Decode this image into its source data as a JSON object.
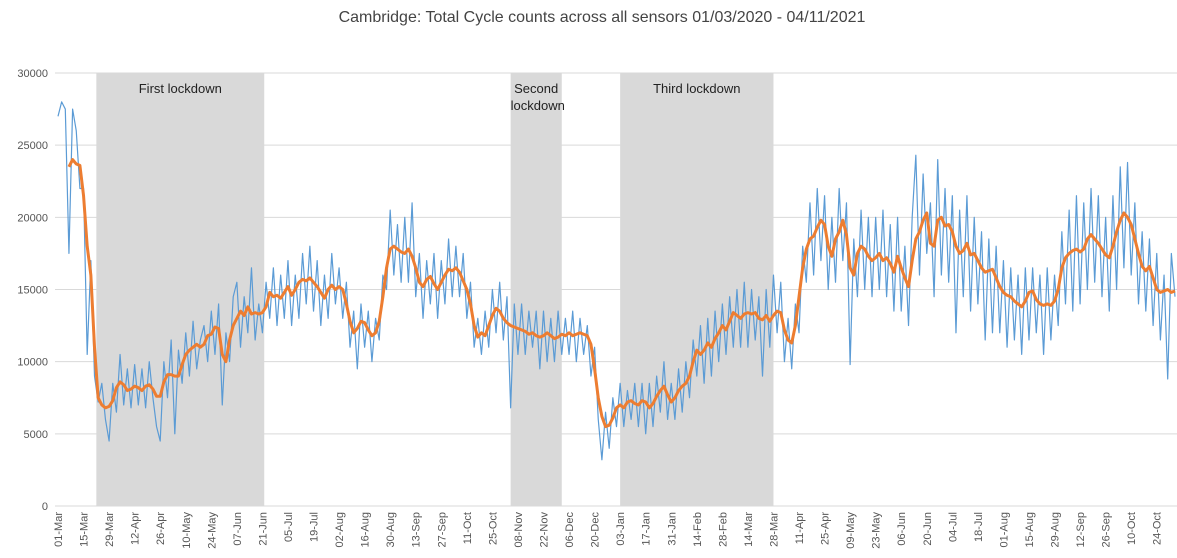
{
  "chart_data": {
    "type": "line",
    "title": "Cambridge: Total Cycle counts across all sensors 01/03/2020 - 04/11/2021",
    "categories": [
      "01-Mar",
      null,
      null,
      null,
      null,
      null,
      null,
      "15-Mar",
      null,
      null,
      null,
      null,
      null,
      null,
      "29-Mar",
      null,
      null,
      null,
      null,
      null,
      null,
      "12-Apr",
      null,
      null,
      null,
      null,
      null,
      null,
      "26-Apr",
      null,
      null,
      null,
      null,
      null,
      null,
      "10-May",
      null,
      null,
      null,
      null,
      null,
      null,
      "24-May",
      null,
      null,
      null,
      null,
      null,
      null,
      "07-Jun",
      null,
      null,
      null,
      null,
      null,
      null,
      "21-Jun",
      null,
      null,
      null,
      null,
      null,
      null,
      "05-Jul",
      null,
      null,
      null,
      null,
      null,
      null,
      "19-Jul",
      null,
      null,
      null,
      null,
      null,
      null,
      "02-Aug",
      null,
      null,
      null,
      null,
      null,
      null,
      "16-Aug",
      null,
      null,
      null,
      null,
      null,
      null,
      "30-Aug",
      null,
      null,
      null,
      null,
      null,
      null,
      "13-Sep",
      null,
      null,
      null,
      null,
      null,
      null,
      "27-Sep",
      null,
      null,
      null,
      null,
      null,
      null,
      "11-Oct",
      null,
      null,
      null,
      null,
      null,
      null,
      "25-Oct",
      null,
      null,
      null,
      null,
      null,
      null,
      "08-Nov",
      null,
      null,
      null,
      null,
      null,
      null,
      "22-Nov",
      null,
      null,
      null,
      null,
      null,
      null,
      "06-Dec",
      null,
      null,
      null,
      null,
      null,
      null,
      "20-Dec",
      null,
      null,
      null,
      null,
      null,
      null,
      "03-Jan",
      null,
      null,
      null,
      null,
      null,
      null,
      "17-Jan",
      null,
      null,
      null,
      null,
      null,
      null,
      "31-Jan",
      null,
      null,
      null,
      null,
      null,
      null,
      "14-Feb",
      null,
      null,
      null,
      null,
      null,
      null,
      "28-Feb",
      null,
      null,
      null,
      null,
      null,
      null,
      "14-Mar",
      null,
      null,
      null,
      null,
      null,
      null,
      "28-Mar",
      null,
      null,
      null,
      null,
      null,
      null,
      "11-Apr",
      null,
      null,
      null,
      null,
      null,
      null,
      "25-Apr",
      null,
      null,
      null,
      null,
      null,
      null,
      "09-May",
      null,
      null,
      null,
      null,
      null,
      null,
      "23-May",
      null,
      null,
      null,
      null,
      null,
      null,
      "06-Jun",
      null,
      null,
      null,
      null,
      null,
      null,
      "20-Jun",
      null,
      null,
      null,
      null,
      null,
      null,
      "04-Jul",
      null,
      null,
      null,
      null,
      null,
      null,
      "18-Jul",
      null,
      null,
      null,
      null,
      null,
      null,
      "01-Aug",
      null,
      null,
      null,
      null,
      null,
      null,
      "15-Aug",
      null,
      null,
      null,
      null,
      null,
      null,
      "29-Aug",
      null,
      null,
      null,
      null,
      null,
      null,
      "12-Sep",
      null,
      null,
      null,
      null,
      null,
      null,
      "26-Sep",
      null,
      null,
      null,
      null,
      null,
      null,
      "10-Oct",
      null,
      null,
      null,
      null,
      null,
      null,
      "24-Oct",
      null,
      null,
      null,
      null,
      null
    ],
    "series": [
      {
        "color": "#5b9bd5",
        "width": 1.2,
        "values": [
          27000,
          28000,
          27500,
          17500,
          27500,
          26000,
          22000,
          22000,
          10500,
          17000,
          9000,
          7200,
          8500,
          6000,
          4500,
          8500,
          6500,
          10500,
          7000,
          9500,
          6800,
          9800,
          7000,
          9500,
          6800,
          10000,
          7500,
          5500,
          4500,
          10000,
          7500,
          11500,
          5000,
          10800,
          8500,
          12000,
          9000,
          12800,
          9500,
          11500,
          12500,
          10000,
          13500,
          10500,
          14000,
          7000,
          12000,
          10000,
          14500,
          15500,
          11000,
          14500,
          12000,
          16500,
          11500,
          14000,
          12000,
          15500,
          13000,
          16500,
          12500,
          16000,
          13000,
          17000,
          12500,
          16000,
          13000,
          17500,
          14000,
          18000,
          13500,
          17000,
          12500,
          16000,
          13000,
          17500,
          14000,
          16500,
          13000,
          15500,
          11000,
          13500,
          9500,
          14000,
          11000,
          13500,
          10000,
          13000,
          11500,
          16000,
          15000,
          20500,
          16000,
          19500,
          15500,
          20000,
          15500,
          21000,
          14500,
          17500,
          13000,
          17000,
          14000,
          17500,
          13000,
          17000,
          14000,
          18500,
          14500,
          18000,
          14500,
          17500,
          13000,
          15500,
          11000,
          13000,
          10500,
          13500,
          11000,
          15000,
          12000,
          15500,
          11500,
          14500,
          6800,
          14000,
          10500,
          14000,
          10500,
          13500,
          11000,
          13500,
          9500,
          13500,
          10000,
          13000,
          10000,
          13500,
          10500,
          13000,
          10500,
          13500,
          10000,
          13000,
          10500,
          12500,
          9000,
          11000,
          6000,
          3200,
          6500,
          4000,
          7500,
          5500,
          8500,
          5500,
          8000,
          6000,
          8500,
          5500,
          8500,
          5000,
          8500,
          5500,
          9000,
          6500,
          10000,
          6000,
          8500,
          6000,
          9500,
          6500,
          10000,
          7500,
          11500,
          9000,
          12500,
          8500,
          13000,
          9000,
          13500,
          10000,
          14000,
          10500,
          14500,
          11000,
          15000,
          11000,
          15500,
          11000,
          15000,
          11500,
          14500,
          9000,
          15000,
          11000,
          16000,
          12000,
          15500,
          10000,
          13000,
          9500,
          14000,
          12000,
          18000,
          15500,
          21000,
          16000,
          22000,
          17000,
          21500,
          15000,
          20000,
          15500,
          22000,
          17000,
          21000,
          9800,
          18500,
          14500,
          20500,
          15000,
          20000,
          14500,
          20000,
          15000,
          20500,
          14500,
          19500,
          13500,
          20000,
          13500,
          18000,
          12500,
          20000,
          24300,
          16000,
          23000,
          17500,
          21000,
          14500,
          24000,
          16000,
          22000,
          15500,
          21500,
          12000,
          20500,
          14500,
          21500,
          13500,
          20000,
          14000,
          19000,
          11500,
          18500,
          12000,
          18000,
          12000,
          17000,
          11000,
          16500,
          11500,
          16000,
          10500,
          16500,
          11500,
          16500,
          12000,
          16000,
          10500,
          16500,
          11500,
          16000,
          12500,
          19000,
          14000,
          20500,
          13500,
          21500,
          14000,
          21000,
          15000,
          22000,
          15500,
          21500,
          14500,
          20000,
          13500,
          21500,
          15000,
          23500,
          16500,
          23800,
          16000,
          21000,
          14000,
          19000,
          13500,
          18500,
          12500,
          17500,
          11500,
          16000,
          8800,
          17500,
          14500
        ]
      },
      {
        "color": "#ed7d31",
        "width": 3,
        "values": [
          null,
          null,
          null,
          23500,
          24000,
          23700,
          23600,
          21500,
          18000,
          16000,
          11000,
          7500,
          7000,
          6800,
          6900,
          7300,
          8200,
          8600,
          8400,
          8000,
          8100,
          8300,
          8200,
          8000,
          8300,
          8400,
          8100,
          7600,
          7600,
          8600,
          9100,
          9100,
          9000,
          9000,
          9800,
          10500,
          10800,
          11000,
          11200,
          11000,
          11200,
          11800,
          11900,
          12400,
          12300,
          10500,
          10000,
          11500,
          12500,
          13000,
          13500,
          13200,
          13800,
          13300,
          13400,
          13300,
          13400,
          13800,
          14800,
          14500,
          14600,
          14400,
          14800,
          15200,
          14600,
          15000,
          15500,
          15700,
          15600,
          15800,
          15500,
          15200,
          14800,
          14400,
          15000,
          15300,
          15000,
          15200,
          15000,
          14000,
          12800,
          12000,
          12300,
          12800,
          12700,
          12200,
          11800,
          12000,
          12800,
          14500,
          16500,
          17800,
          18000,
          17800,
          17600,
          17500,
          17800,
          17300,
          16500,
          15500,
          15200,
          15700,
          15900,
          15400,
          15000,
          15500,
          16000,
          16400,
          16300,
          16500,
          16200,
          15600,
          15000,
          14000,
          12500,
          11700,
          12000,
          11800,
          12500,
          13200,
          13700,
          13500,
          13000,
          12700,
          12500,
          12400,
          12300,
          12200,
          12100,
          11900,
          12000,
          11800,
          11700,
          11800,
          12000,
          11800,
          11600,
          11700,
          11900,
          11800,
          12000,
          11800,
          11900,
          12000,
          11900,
          11800,
          11200,
          9500,
          7500,
          6200,
          5500,
          5600,
          6100,
          6800,
          7000,
          6800,
          7200,
          7300,
          7100,
          7000,
          7300,
          7200,
          6800,
          7100,
          7600,
          8000,
          8300,
          7700,
          7200,
          7500,
          8000,
          8300,
          8500,
          9000,
          10000,
          10800,
          10500,
          10800,
          11300,
          11000,
          11600,
          12000,
          12500,
          12200,
          12800,
          13400,
          13200,
          13000,
          13300,
          13400,
          13300,
          13400,
          13000,
          12900,
          13200,
          12800,
          13200,
          13500,
          13400,
          12200,
          11500,
          11300,
          12500,
          14500,
          16500,
          17800,
          18500,
          18700,
          19300,
          19800,
          19500,
          18000,
          17300,
          18500,
          19000,
          19800,
          18800,
          16500,
          16000,
          17500,
          18000,
          17800,
          17300,
          17000,
          17200,
          17500,
          17000,
          17200,
          16800,
          16200,
          17300,
          16500,
          15800,
          15200,
          17000,
          18500,
          19000,
          19800,
          20300,
          18200,
          18000,
          19800,
          20000,
          19400,
          19500,
          19000,
          18000,
          17500,
          17700,
          18200,
          17400,
          17500,
          17000,
          16500,
          16200,
          16300,
          16400,
          15800,
          15200,
          14800,
          14600,
          14500,
          14200,
          14000,
          13800,
          14200,
          14800,
          14900,
          14300,
          14000,
          13900,
          14000,
          13900,
          14200,
          15000,
          16500,
          17200,
          17500,
          17700,
          17800,
          17600,
          17800,
          18500,
          18800,
          18500,
          18200,
          17800,
          17400,
          17200,
          18000,
          19000,
          19800,
          20300,
          20000,
          19500,
          18500,
          17500,
          16600,
          16300,
          16600,
          15800,
          15000,
          14800,
          14900,
          15000,
          14800,
          14900
        ]
      }
    ],
    "regions": [
      {
        "label": "First lockdown",
        "from": 10.5,
        "to": 56.5,
        "color": "#d9d9d9"
      },
      {
        "label": "Second lockdown",
        "from": 124,
        "to": 138,
        "color": "#d9d9d9"
      },
      {
        "label": "Third lockdown",
        "from": 154,
        "to": 196,
        "color": "#d9d9d9"
      }
    ],
    "ylim": [
      0,
      30000
    ],
    "yticks": [
      0,
      5000,
      10000,
      15000,
      20000,
      25000,
      30000
    ],
    "grid": true
  }
}
